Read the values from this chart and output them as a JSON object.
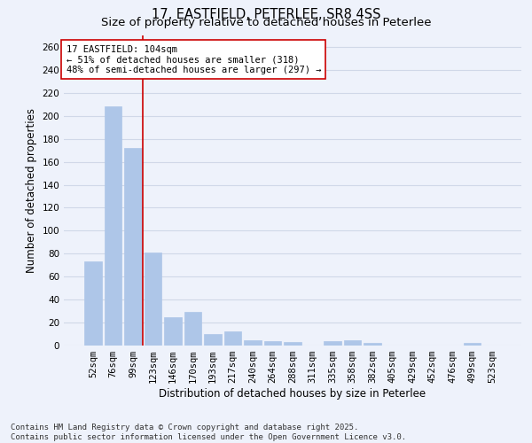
{
  "title_line1": "17, EASTFIELD, PETERLEE, SR8 4SS",
  "title_line2": "Size of property relative to detached houses in Peterlee",
  "xlabel": "Distribution of detached houses by size in Peterlee",
  "ylabel": "Number of detached properties",
  "categories": [
    "52sqm",
    "76sqm",
    "99sqm",
    "123sqm",
    "146sqm",
    "170sqm",
    "193sqm",
    "217sqm",
    "240sqm",
    "264sqm",
    "288sqm",
    "311sqm",
    "335sqm",
    "358sqm",
    "382sqm",
    "405sqm",
    "429sqm",
    "452sqm",
    "476sqm",
    "499sqm",
    "523sqm"
  ],
  "values": [
    73,
    208,
    172,
    81,
    25,
    29,
    10,
    12,
    5,
    4,
    3,
    0,
    4,
    5,
    2,
    0,
    0,
    0,
    0,
    2,
    0
  ],
  "bar_color": "#aec6e8",
  "bar_edge_color": "#aec6e8",
  "grid_color": "#d0d8e8",
  "background_color": "#eef2fb",
  "vline_x": 2.5,
  "vline_color": "#cc0000",
  "annotation_text": "17 EASTFIELD: 104sqm\n← 51% of detached houses are smaller (318)\n48% of semi-detached houses are larger (297) →",
  "annotation_box_color": "#ffffff",
  "annotation_border_color": "#cc0000",
  "ylim": [
    0,
    270
  ],
  "yticks": [
    0,
    20,
    40,
    60,
    80,
    100,
    120,
    140,
    160,
    180,
    200,
    220,
    240,
    260
  ],
  "footer_line1": "Contains HM Land Registry data © Crown copyright and database right 2025.",
  "footer_line2": "Contains public sector information licensed under the Open Government Licence v3.0.",
  "title_fontsize": 10.5,
  "subtitle_fontsize": 9.5,
  "axis_label_fontsize": 8.5,
  "tick_fontsize": 7.5,
  "annotation_fontsize": 7.5,
  "footer_fontsize": 6.5
}
